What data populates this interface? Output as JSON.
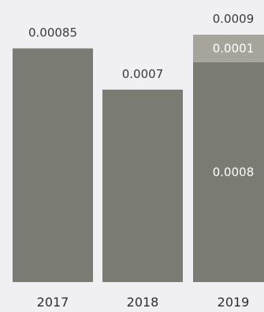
{
  "chart_data": {
    "type": "bar",
    "stacked": true,
    "categories": [
      "2017",
      "2018",
      "2019"
    ],
    "series": [
      {
        "values": [
          0.00085,
          0.0007,
          0.0008
        ],
        "color": "#7a7b72"
      },
      {
        "values": [
          0,
          0,
          0.0001
        ],
        "color": "#a6a49b"
      }
    ],
    "totals": [
      0.00085,
      0.0007,
      0.0009
    ],
    "total_labels": [
      "0.00085",
      "0.0007",
      "0.0009"
    ],
    "segment_labels": [
      {
        "category_index": 2,
        "series_index": 0,
        "text": "0.0008"
      },
      {
        "category_index": 2,
        "series_index": 1,
        "text": "0.0001"
      }
    ],
    "ylim": [
      0,
      0.0009
    ],
    "grid": false,
    "legend": "none",
    "background": "#f0f0f2"
  }
}
